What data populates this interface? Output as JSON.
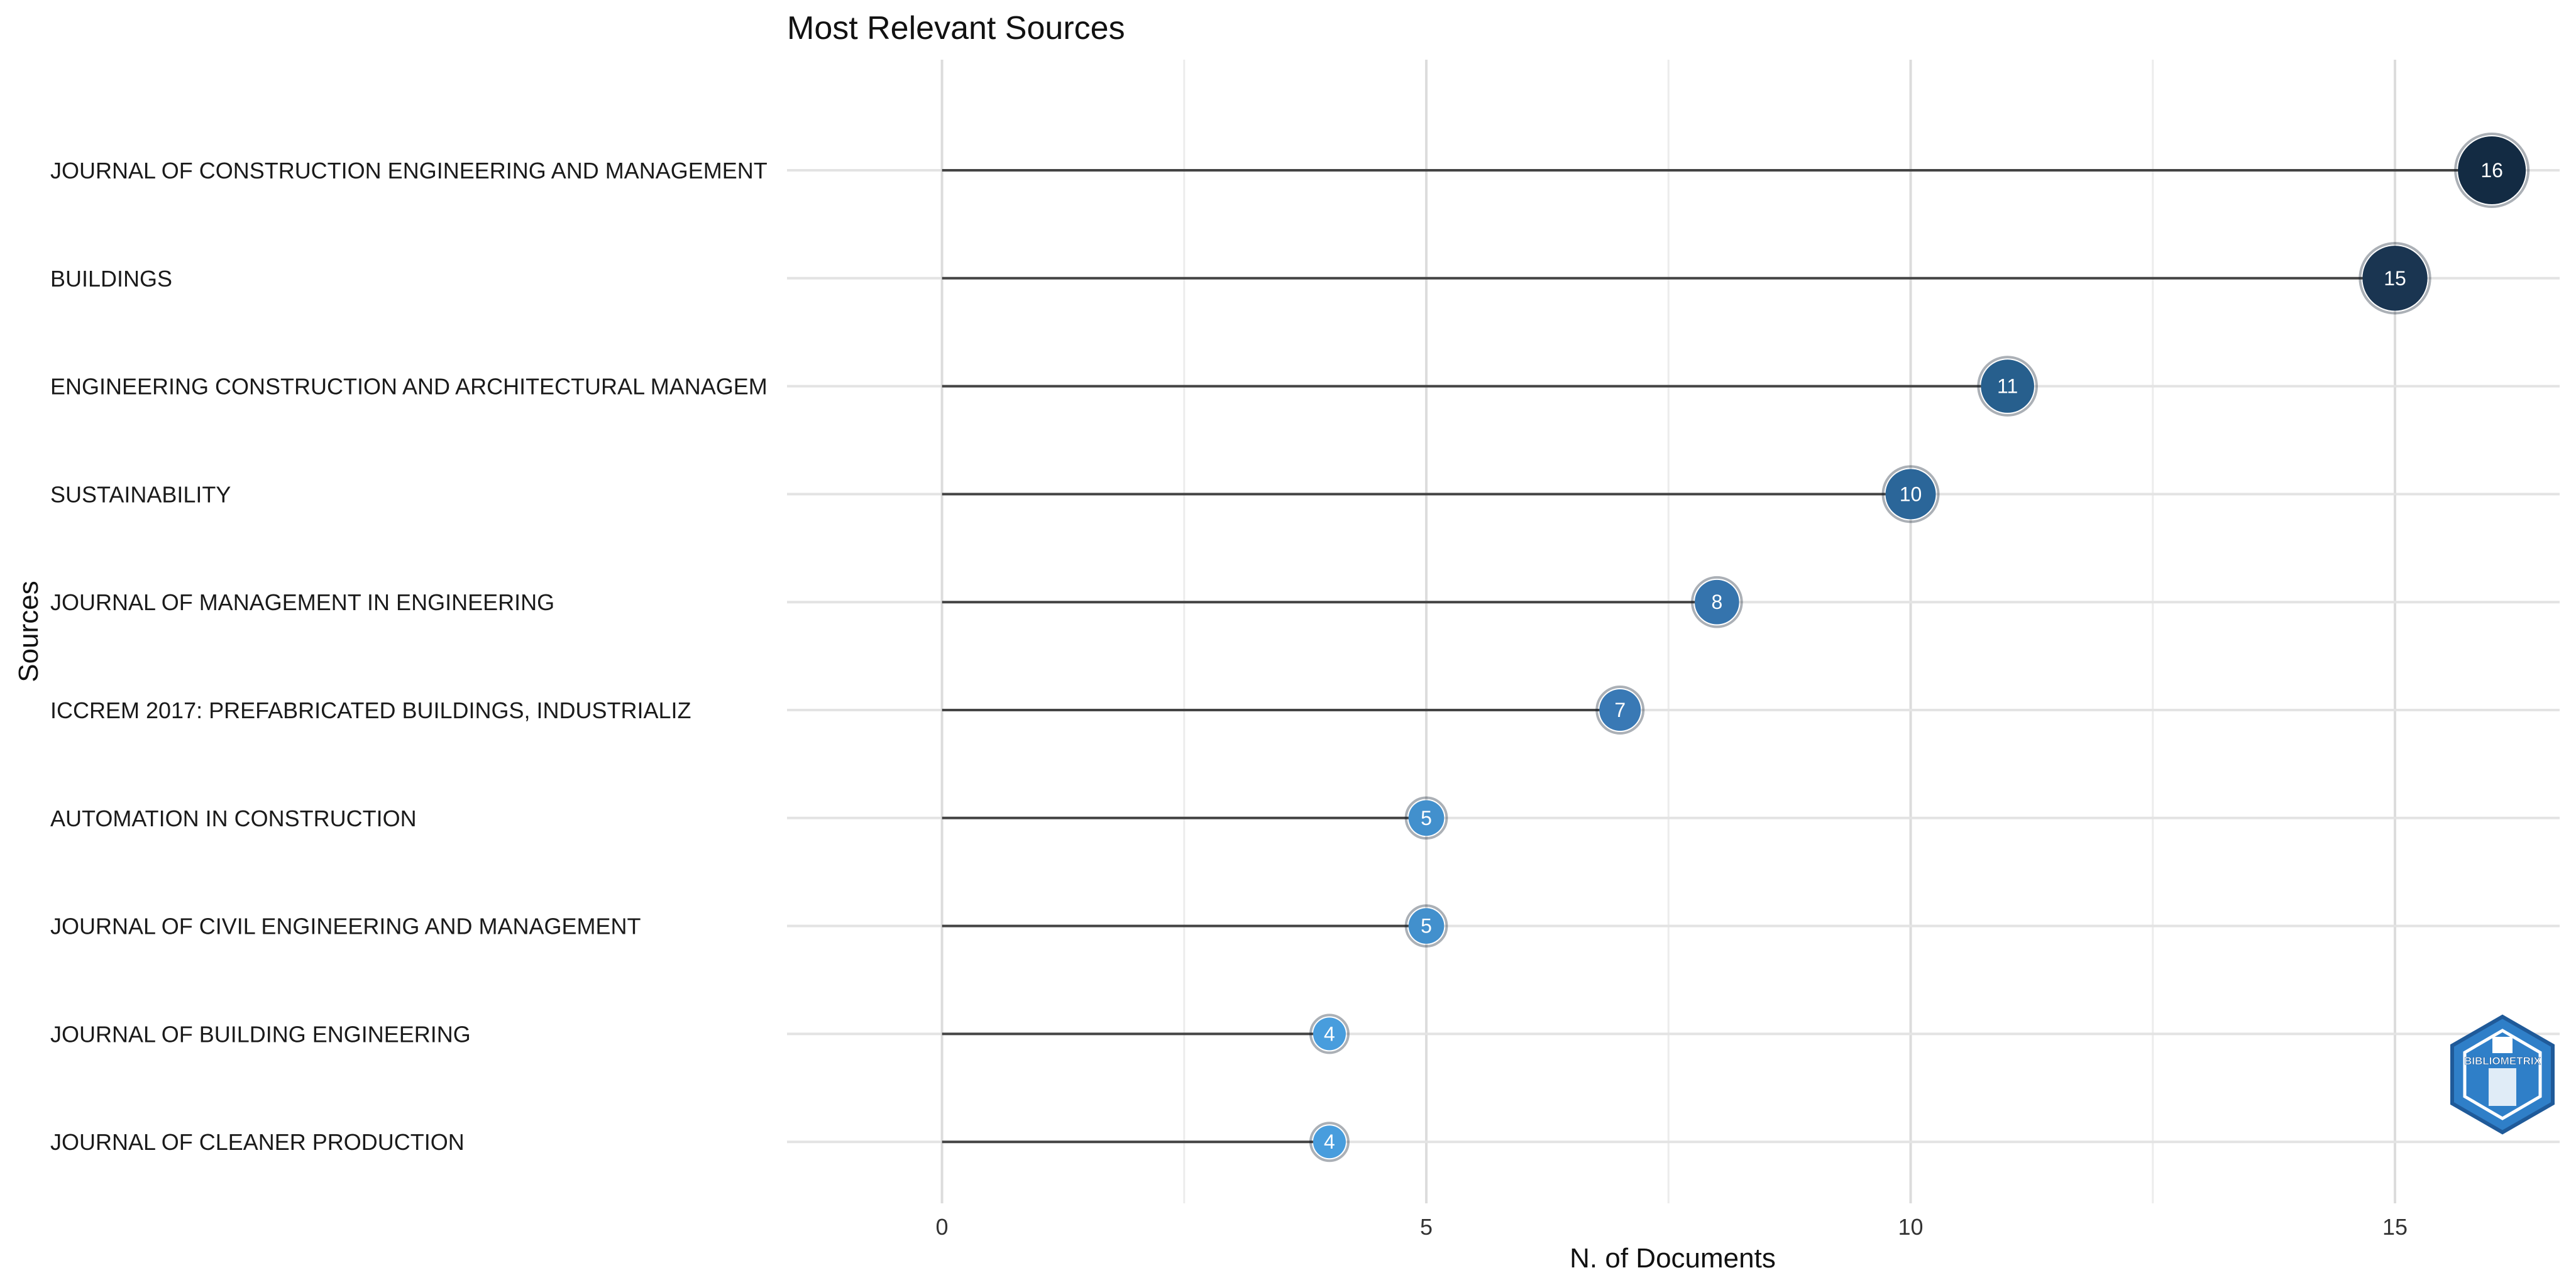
{
  "chart_data": {
    "type": "lollipop",
    "title": "Most Relevant Sources",
    "xlabel": "N. of Documents",
    "ylabel": "Sources",
    "xlim": [
      -1.6,
      16.7
    ],
    "xticks": [
      0,
      5,
      10,
      15
    ],
    "grid": true,
    "categories": [
      "JOURNAL OF CONSTRUCTION ENGINEERING AND MANAGEMENT",
      "BUILDINGS",
      "ENGINEERING CONSTRUCTION AND ARCHITECTURAL MANAGEM",
      "SUSTAINABILITY",
      "JOURNAL OF MANAGEMENT IN ENGINEERING",
      "ICCREM 2017: PREFABRICATED BUILDINGS, INDUSTRIALIZ",
      "AUTOMATION IN CONSTRUCTION",
      "JOURNAL OF CIVIL ENGINEERING AND MANAGEMENT",
      "JOURNAL OF BUILDING ENGINEERING",
      "JOURNAL OF CLEANER PRODUCTION"
    ],
    "values": [
      16,
      15,
      11,
      10,
      8,
      7,
      5,
      5,
      4,
      4
    ],
    "colors": [
      "#132b43",
      "#1a3551",
      "#275f8d",
      "#2b6699",
      "#3574ad",
      "#3979b5",
      "#4290cd",
      "#4290cd",
      "#489ddd",
      "#489ddd"
    ]
  },
  "logo": {
    "text": "BIBLIOMETRIX"
  }
}
